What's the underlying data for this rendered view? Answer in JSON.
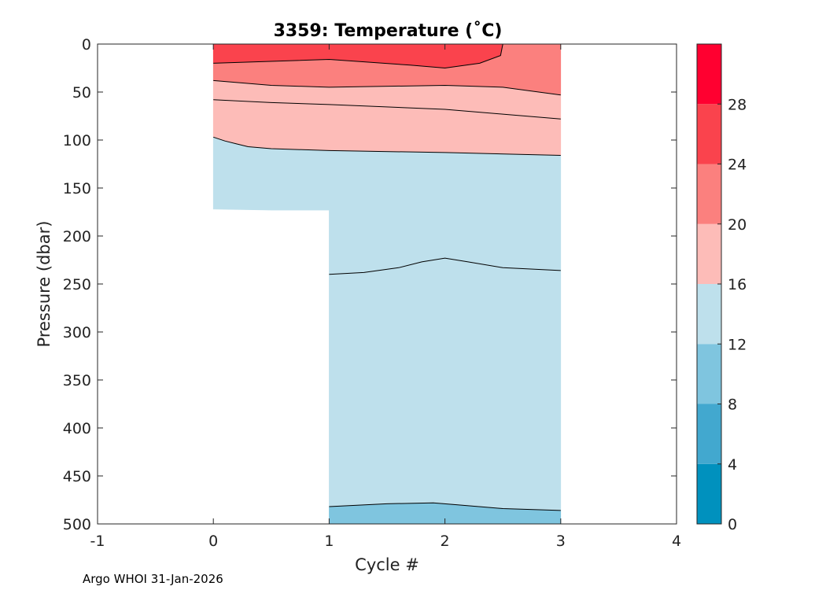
{
  "chart_data": {
    "type": "contourf",
    "title": "3359:  Temperature (˚C)",
    "xlabel": "Cycle #",
    "ylabel": "Pressure (dbar)",
    "xlim": [
      -1,
      4
    ],
    "ylim": [
      500,
      0
    ],
    "xticks": [
      "-1",
      "0",
      "1",
      "2",
      "3",
      "4"
    ],
    "yticks": [
      "0",
      "50",
      "100",
      "150",
      "200",
      "250",
      "300",
      "350",
      "400",
      "450",
      "500"
    ],
    "colorbar": {
      "range": [
        0,
        32
      ],
      "levels": [
        0,
        4,
        8,
        12,
        16,
        20,
        24,
        28,
        32
      ],
      "ticks": [
        "0",
        "4",
        "8",
        "12",
        "16",
        "20",
        "24",
        "28"
      ],
      "colors": [
        "#0091be",
        "#42a8cf",
        "#7fc5df",
        "#bee0ec",
        "#fdbcb8",
        "#fb807e",
        "#fa434d",
        "#ff0030"
      ]
    },
    "bands": [
      {
        "range": "24-28",
        "color": "#fa434d",
        "top": [
          [
            0,
            0
          ],
          [
            2.45,
            0
          ],
          [
            2.5,
            0
          ]
        ],
        "bottom": [
          [
            2.5,
            0
          ],
          [
            2.48,
            12
          ],
          [
            2.3,
            20
          ],
          [
            2.0,
            25
          ],
          [
            1.7,
            22
          ],
          [
            1.0,
            16
          ],
          [
            0,
            20
          ]
        ],
        "draw_bottom_line": true
      },
      {
        "range": "20-24",
        "color": "#fb807e",
        "top": [
          [
            0,
            20
          ],
          [
            1.0,
            16
          ],
          [
            1.7,
            22
          ],
          [
            2.0,
            25
          ],
          [
            2.3,
            20
          ],
          [
            2.48,
            12
          ],
          [
            2.5,
            0
          ],
          [
            3.0,
            0
          ]
        ],
        "bottom": [
          [
            3.0,
            53
          ],
          [
            2.5,
            45
          ],
          [
            2.0,
            43
          ],
          [
            1.0,
            45
          ],
          [
            0.5,
            43
          ],
          [
            0,
            38
          ]
        ],
        "draw_bottom_line": true
      },
      {
        "range": "16-20 upper",
        "color": "#fdbcb8",
        "top": [
          [
            0,
            38
          ],
          [
            0.5,
            43
          ],
          [
            1.0,
            45
          ],
          [
            2.0,
            43
          ],
          [
            2.5,
            45
          ],
          [
            3.0,
            53
          ]
        ],
        "bottom": [
          [
            3.0,
            78
          ],
          [
            2.5,
            73
          ],
          [
            2.0,
            68
          ],
          [
            1.0,
            63
          ],
          [
            0.5,
            61
          ],
          [
            0,
            58
          ]
        ],
        "draw_bottom_line": true
      },
      {
        "range": "16-20 lower",
        "color": "#fdbcb8",
        "top": [
          [
            0,
            58
          ],
          [
            0.5,
            61
          ],
          [
            1.0,
            63
          ],
          [
            2.0,
            68
          ],
          [
            2.5,
            73
          ],
          [
            3.0,
            78
          ]
        ],
        "bottom": [
          [
            3.0,
            116
          ],
          [
            2.0,
            113
          ],
          [
            1.0,
            111
          ],
          [
            0.5,
            109
          ],
          [
            0.3,
            107
          ],
          [
            0.2,
            104
          ],
          [
            0.1,
            101
          ],
          [
            0,
            97
          ]
        ],
        "draw_bottom_line": true
      },
      {
        "range": "12-16",
        "color": "#bee0ec",
        "top": [
          [
            0,
            97
          ],
          [
            0.1,
            101
          ],
          [
            0.2,
            104
          ],
          [
            0.3,
            107
          ],
          [
            0.5,
            109
          ],
          [
            1.0,
            111
          ],
          [
            2.0,
            113
          ],
          [
            3.0,
            116
          ]
        ],
        "bottom": [
          [
            3.0,
            486
          ],
          [
            2.5,
            484
          ],
          [
            2.1,
            480
          ],
          [
            1.9,
            478
          ],
          [
            1.5,
            479
          ],
          [
            1.0,
            482
          ],
          [
            1.0,
            173
          ],
          [
            0.5,
            173
          ],
          [
            0,
            172
          ]
        ],
        "draw_bottom_line": false
      },
      {
        "range": "8-12",
        "color": "#7fc5df",
        "top": [
          [
            1.0,
            482
          ],
          [
            1.5,
            479
          ],
          [
            1.9,
            478
          ],
          [
            2.1,
            480
          ],
          [
            2.5,
            484
          ],
          [
            3.0,
            486
          ]
        ],
        "bottom": [
          [
            3.0,
            500
          ],
          [
            1.0,
            500
          ]
        ],
        "draw_bottom_line": false
      }
    ],
    "extra_lines": [
      {
        "name": "12-16 internal contour",
        "points": [
          [
            1.0,
            240
          ],
          [
            1.3,
            238
          ],
          [
            1.6,
            233
          ],
          [
            1.8,
            227
          ],
          [
            2.0,
            223
          ],
          [
            2.2,
            227
          ],
          [
            2.5,
            233
          ],
          [
            3.0,
            236
          ]
        ]
      },
      {
        "name": "8-12 top contour",
        "points": [
          [
            1.0,
            482
          ],
          [
            1.5,
            479
          ],
          [
            1.9,
            478
          ],
          [
            2.1,
            480
          ],
          [
            2.5,
            484
          ],
          [
            3.0,
            486
          ]
        ]
      }
    ]
  },
  "footer": "Argo WHOI 31-Jan-2026"
}
